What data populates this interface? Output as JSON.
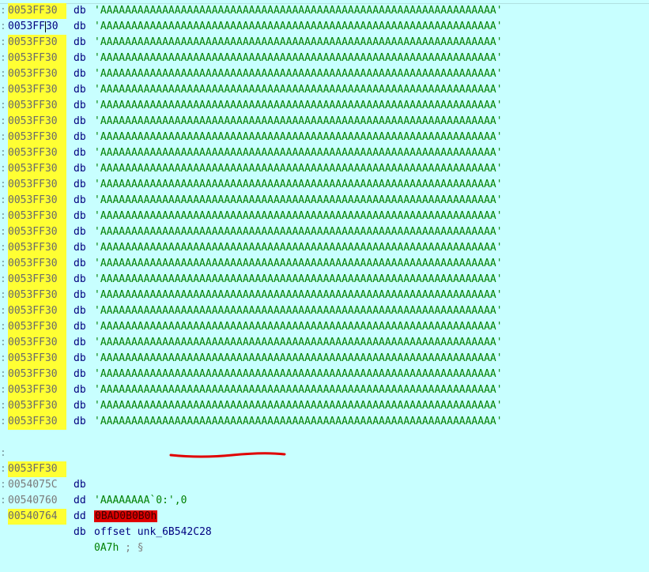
{
  "colors": {
    "background": "#c8ffff",
    "address_highlight": "#ffff33",
    "error_value_bg": "#e00000",
    "annotation_line": "#e00000"
  },
  "string_row": {
    "prefix": ":",
    "address": "0053FF30",
    "cursor_address_left": "0053FF",
    "cursor_address_right": "30",
    "mnemonic": "db",
    "value": "'AAAAAAAAAAAAAAAAAAAAAAAAAAAAAAAAAAAAAAAAAAAAAAAAAAAAAAAAAAAAAAAA'"
  },
  "tail_row": {
    "prefix": ":",
    "address": "0053FF30",
    "mnemonic": "db",
    "value": "'AAAAAAAA`0:',0"
  },
  "dword_row": {
    "prefix": ":",
    "address": "0054075C",
    "mnemonic": "dd",
    "value": "0BAD0B0B0h"
  },
  "offset_row": {
    "prefix": ":",
    "address": "00540760",
    "mnemonic": "dd",
    "keyword": "offset",
    "value": "unk_6B542C28"
  },
  "last_row": {
    "prefix": ":",
    "address": "00540764",
    "mnemonic": "db",
    "value": "0A7h",
    "comment": "; §"
  }
}
